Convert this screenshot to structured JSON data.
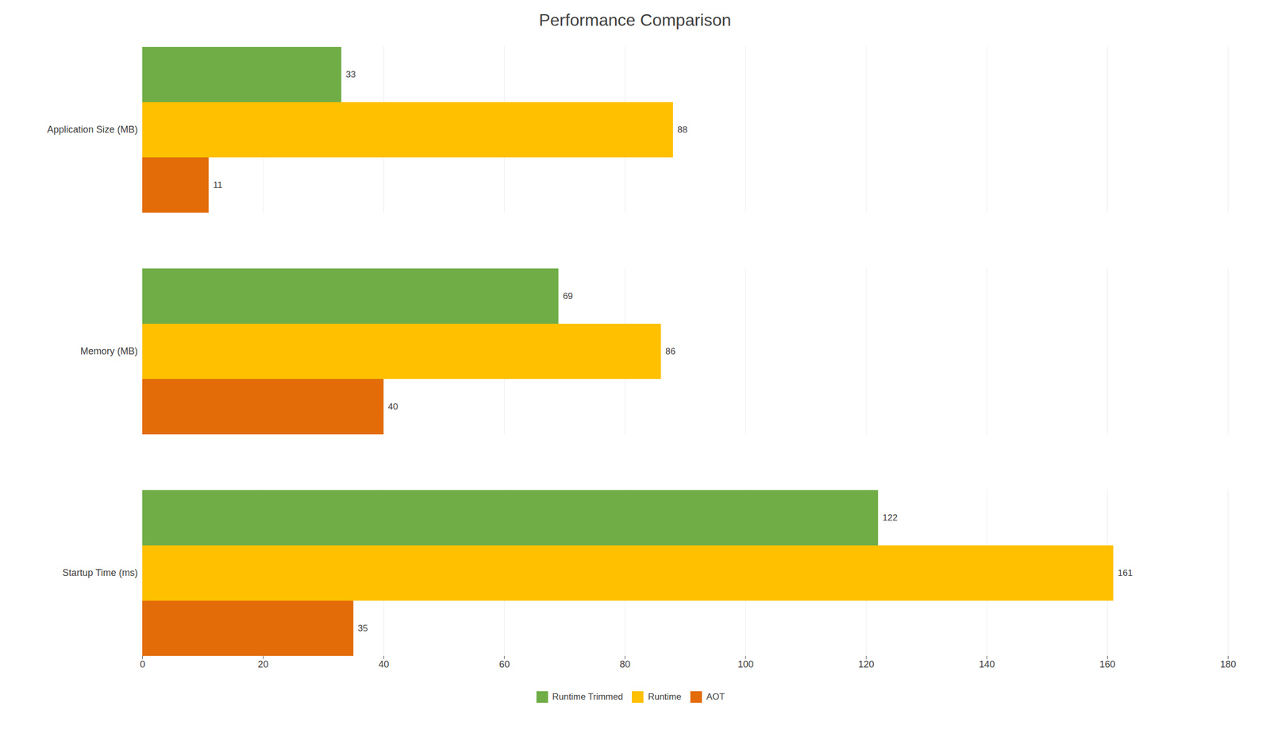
{
  "chart_data": {
    "type": "bar",
    "orientation": "horizontal",
    "title": "Performance Comparison",
    "categories": [
      "Startup Time (ms)",
      "Memory (MB)",
      "Application Size (MB)"
    ],
    "series": [
      {
        "name": "Runtime Trimmed",
        "color": "#70AD47",
        "values": [
          122,
          69,
          33
        ]
      },
      {
        "name": "Runtime",
        "color": "#FFC000",
        "values": [
          161,
          86,
          88
        ]
      },
      {
        "name": "AOT",
        "color": "#E36C09",
        "values": [
          35,
          40,
          11
        ]
      }
    ],
    "xlim": [
      0,
      180
    ],
    "xticks": [
      0,
      20,
      40,
      60,
      80,
      100,
      120,
      140,
      160,
      180
    ],
    "grid": true,
    "data_labels": true,
    "legend": "bottom"
  }
}
